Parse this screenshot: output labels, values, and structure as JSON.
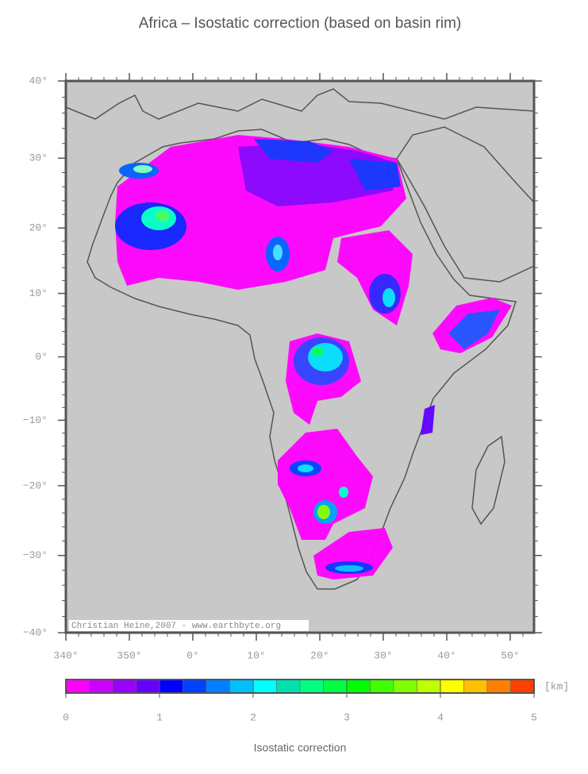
{
  "title": "Africa – Isostatic correction (based on basin rim)",
  "map": {
    "lon_range": [
      -20,
      53.75
    ],
    "lat_range": [
      -40,
      40
    ],
    "lon_ticks": [
      {
        "value": -20,
        "label": "340°"
      },
      {
        "value": -10,
        "label": "350°"
      },
      {
        "value": 0,
        "label": "0°"
      },
      {
        "value": 10,
        "label": "10°"
      },
      {
        "value": 20,
        "label": "20°"
      },
      {
        "value": 30,
        "label": "30°"
      },
      {
        "value": 40,
        "label": "40°"
      },
      {
        "value": 50,
        "label": "50°"
      }
    ],
    "lat_ticks": [
      {
        "value": 40,
        "label": "40°"
      },
      {
        "value": 30,
        "label": "30°"
      },
      {
        "value": 20,
        "label": "20°"
      },
      {
        "value": 10,
        "label": "10°"
      },
      {
        "value": 0,
        "label": "0°"
      },
      {
        "value": -10,
        "label": "−10°"
      },
      {
        "value": -20,
        "label": "−20°"
      },
      {
        "value": -30,
        "label": "−30°"
      },
      {
        "value": -40,
        "label": "−40°"
      }
    ],
    "credit": "Christian Heine,2007 - www.earthbyte.org"
  },
  "colorbar": {
    "range": [
      0,
      5
    ],
    "ticks": [
      0,
      1,
      2,
      3,
      4,
      5
    ],
    "unit": "[km]",
    "label": "Isostatic correction",
    "colors": [
      "#ff00ff",
      "#cc00ff",
      "#9900ff",
      "#6600ff",
      "#0000ff",
      "#0040ff",
      "#0080ff",
      "#00c0ff",
      "#00ffff",
      "#00e0b0",
      "#00ff80",
      "#00ff40",
      "#00ff00",
      "#40ff00",
      "#80ff00",
      "#c0ff00",
      "#ffff00",
      "#ffc000",
      "#ff8000",
      "#ff4000"
    ]
  }
}
